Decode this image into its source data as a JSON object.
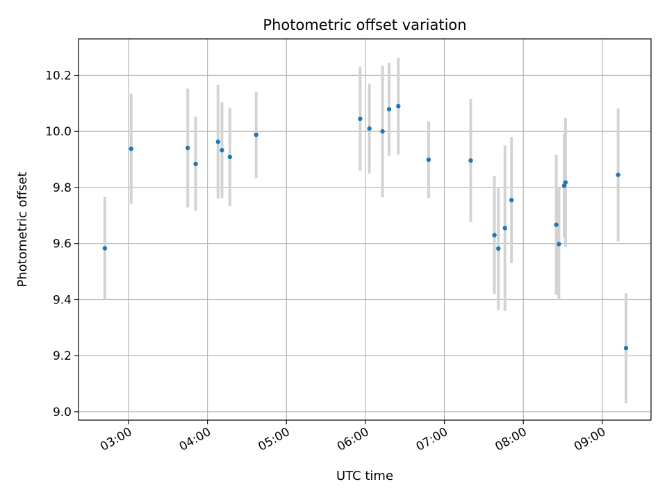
{
  "chart_data": {
    "type": "scatter",
    "title": "Photometric offset variation",
    "xlabel": "UTC time",
    "ylabel": "Photometric offset",
    "x_ticks": [
      "03:00",
      "04:00",
      "05:00",
      "06:00",
      "07:00",
      "08:00",
      "09:00"
    ],
    "y_ticks": [
      "9.0",
      "9.2",
      "9.4",
      "9.6",
      "9.8",
      "10.0",
      "10.2"
    ],
    "xlim": [
      "02:22",
      "09:37"
    ],
    "ylim": [
      8.97,
      10.33
    ],
    "grid": true,
    "colors": {
      "point": "#1f77b4",
      "errorbar": "#d3d3d3",
      "grid": "#b0b0b0"
    },
    "points": [
      {
        "x": "02:42",
        "y": 9.583,
        "yerr": 0.183
      },
      {
        "x": "03:02",
        "y": 9.938,
        "yerr": 0.197
      },
      {
        "x": "03:45",
        "y": 9.941,
        "yerr": 0.212
      },
      {
        "x": "03:51",
        "y": 9.884,
        "yerr": 0.168
      },
      {
        "x": "04:08",
        "y": 9.963,
        "yerr": 0.203
      },
      {
        "x": "04:11",
        "y": 9.933,
        "yerr": 0.171
      },
      {
        "x": "04:17",
        "y": 9.909,
        "yerr": 0.175
      },
      {
        "x": "04:37",
        "y": 9.988,
        "yerr": 0.154
      },
      {
        "x": "05:56",
        "y": 10.045,
        "yerr": 0.185
      },
      {
        "x": "06:03",
        "y": 10.01,
        "yerr": 0.16
      },
      {
        "x": "06:13",
        "y": 10.0,
        "yerr": 0.235
      },
      {
        "x": "06:18",
        "y": 10.079,
        "yerr": 0.166
      },
      {
        "x": "06:25",
        "y": 10.09,
        "yerr": 0.172
      },
      {
        "x": "06:48",
        "y": 9.899,
        "yerr": 0.137
      },
      {
        "x": "07:20",
        "y": 9.896,
        "yerr": 0.22
      },
      {
        "x": "07:38",
        "y": 9.63,
        "yerr": 0.21
      },
      {
        "x": "07:41",
        "y": 9.582,
        "yerr": 0.22
      },
      {
        "x": "07:46",
        "y": 9.655,
        "yerr": 0.295
      },
      {
        "x": "07:51",
        "y": 9.755,
        "yerr": 0.225
      },
      {
        "x": "08:25",
        "y": 9.667,
        "yerr": 0.25
      },
      {
        "x": "08:27",
        "y": 9.598,
        "yerr": 0.2
      },
      {
        "x": "08:31",
        "y": 9.806,
        "yerr": 0.185
      },
      {
        "x": "08:32",
        "y": 9.818,
        "yerr": 0.23
      },
      {
        "x": "09:12",
        "y": 9.845,
        "yerr": 0.237
      },
      {
        "x": "09:18",
        "y": 9.227,
        "yerr": 0.196
      }
    ]
  }
}
